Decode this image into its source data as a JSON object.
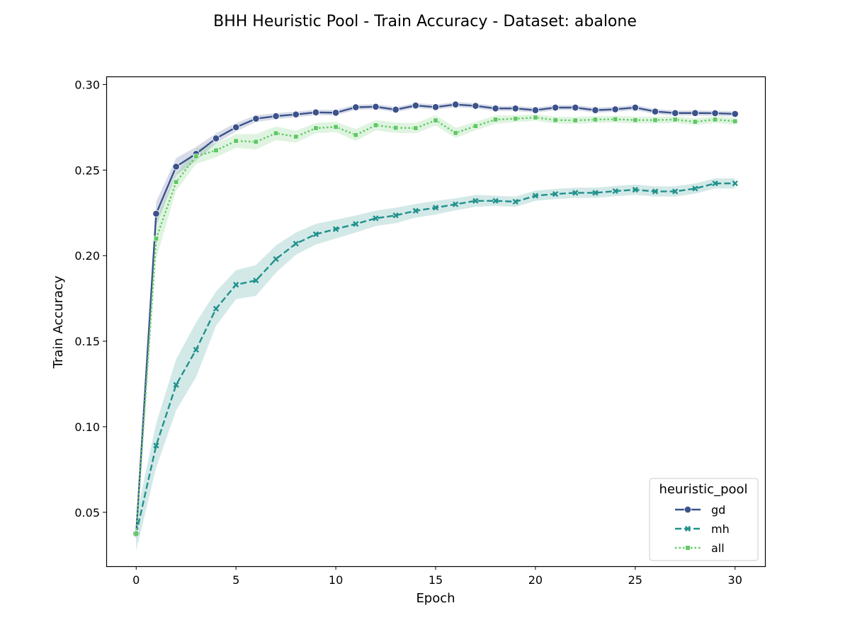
{
  "chart_data": {
    "type": "line",
    "title": "BHH Heuristic Pool - Train Accuracy - Dataset: abalone",
    "xlabel": "Epoch",
    "ylabel": "Train Accuracy",
    "xlim": [
      -1.5,
      31.5
    ],
    "ylim": [
      0.0185,
      0.3047
    ],
    "x_ticks": [
      0,
      5,
      10,
      15,
      20,
      25,
      30
    ],
    "y_ticks": [
      0.05,
      0.1,
      0.15,
      0.2,
      0.25,
      0.3
    ],
    "x_tick_labels": [
      "0",
      "5",
      "10",
      "15",
      "20",
      "25",
      "30"
    ],
    "y_tick_labels": [
      "0.05",
      "0.10",
      "0.15",
      "0.20",
      "0.25",
      "0.30"
    ],
    "grid": false,
    "legend": {
      "title": "heuristic_pool",
      "placement": "lower-right"
    },
    "x": [
      0,
      1,
      2,
      3,
      4,
      5,
      6,
      7,
      8,
      9,
      10,
      11,
      12,
      13,
      14,
      15,
      16,
      17,
      18,
      19,
      20,
      21,
      22,
      23,
      24,
      25,
      26,
      27,
      28,
      29,
      30
    ],
    "series": [
      {
        "name": "gd",
        "color": "#3b528b",
        "line_style": "solid",
        "marker": "circle",
        "values": [
          0.0375,
          0.2245,
          0.252,
          0.2595,
          0.2685,
          0.275,
          0.28,
          0.2815,
          0.2825,
          0.2837,
          0.2835,
          0.2867,
          0.287,
          0.2853,
          0.2877,
          0.2868,
          0.2883,
          0.2875,
          0.286,
          0.286,
          0.285,
          0.2865,
          0.2865,
          0.285,
          0.2855,
          0.2865,
          0.2842,
          0.2833,
          0.2833,
          0.2832,
          0.2828
        ],
        "ci_half": [
          0.004,
          0.007,
          0.005,
          0.004,
          0.003,
          0.0025,
          0.002,
          0.0018,
          0.0017,
          0.0016,
          0.0016,
          0.0015,
          0.0015,
          0.0015,
          0.0015,
          0.0015,
          0.0015,
          0.0015,
          0.0015,
          0.0015,
          0.0015,
          0.0015,
          0.0015,
          0.0015,
          0.0015,
          0.0015,
          0.0015,
          0.0015,
          0.0015,
          0.0015,
          0.0015
        ]
      },
      {
        "name": "mh",
        "color": "#21918c",
        "line_style": "dashed",
        "marker": "x",
        "values": [
          0.0375,
          0.089,
          0.1245,
          0.145,
          0.169,
          0.183,
          0.1855,
          0.198,
          0.207,
          0.2125,
          0.2155,
          0.2185,
          0.2218,
          0.2235,
          0.2262,
          0.228,
          0.23,
          0.232,
          0.232,
          0.2315,
          0.235,
          0.236,
          0.2367,
          0.2367,
          0.2377,
          0.2385,
          0.2375,
          0.2375,
          0.2392,
          0.2422,
          0.2422
        ],
        "ci_half": [
          0.01,
          0.013,
          0.015,
          0.016,
          0.01,
          0.0085,
          0.009,
          0.008,
          0.0065,
          0.006,
          0.0055,
          0.005,
          0.0045,
          0.0045,
          0.004,
          0.004,
          0.0035,
          0.0035,
          0.003,
          0.003,
          0.003,
          0.003,
          0.003,
          0.003,
          0.003,
          0.003,
          0.003,
          0.003,
          0.003,
          0.003,
          0.003
        ]
      },
      {
        "name": "all",
        "color": "#5ec962",
        "line_style": "dotted",
        "marker": "square",
        "values": [
          0.0375,
          0.21,
          0.243,
          0.258,
          0.2615,
          0.267,
          0.2665,
          0.2715,
          0.2695,
          0.2745,
          0.2752,
          0.2705,
          0.2762,
          0.2747,
          0.2745,
          0.279,
          0.2717,
          0.2757,
          0.2795,
          0.28,
          0.2807,
          0.2792,
          0.279,
          0.2795,
          0.2797,
          0.2792,
          0.2792,
          0.2795,
          0.2782,
          0.2795,
          0.2785
        ],
        "ci_half": [
          0.005,
          0.012,
          0.005,
          0.0045,
          0.004,
          0.004,
          0.0045,
          0.004,
          0.0035,
          0.003,
          0.003,
          0.0035,
          0.003,
          0.003,
          0.003,
          0.003,
          0.003,
          0.0025,
          0.0025,
          0.002,
          0.002,
          0.002,
          0.002,
          0.002,
          0.002,
          0.002,
          0.002,
          0.002,
          0.002,
          0.002,
          0.002
        ]
      }
    ]
  }
}
